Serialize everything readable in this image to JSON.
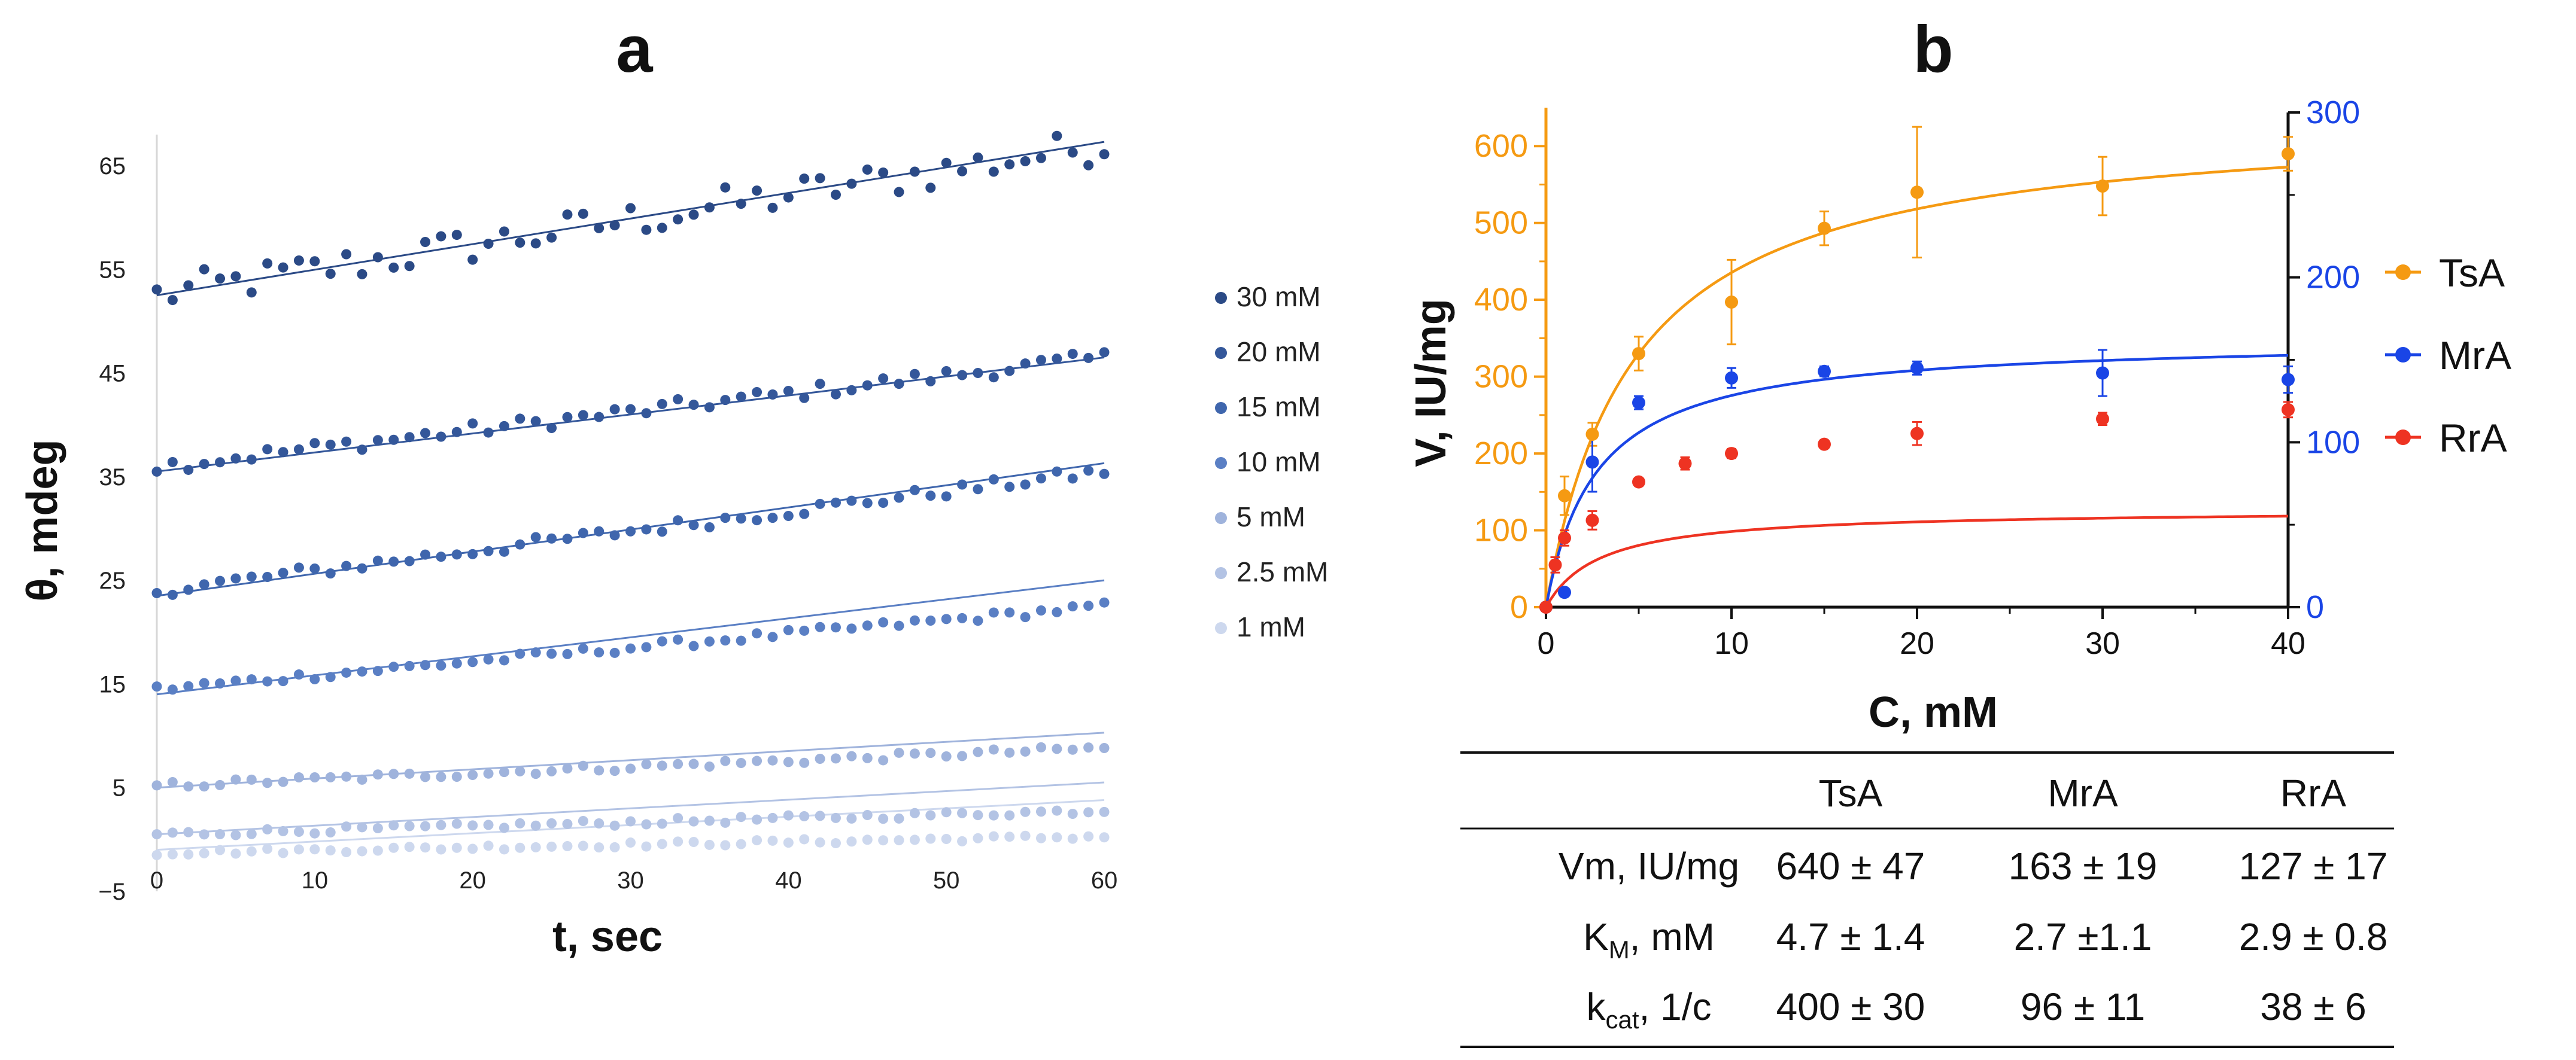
{
  "panels": {
    "a_label": "a",
    "b_label": "b"
  },
  "chart_data": [
    {
      "type": "scatter",
      "panel": "a",
      "xlabel": "t, sec",
      "ylabel": "θ, mdeg",
      "xlim": [
        0,
        60
      ],
      "ylim": [
        -5,
        68
      ],
      "xticks": [
        0,
        10,
        20,
        30,
        40,
        50,
        60
      ],
      "yticks": [
        -5,
        5,
        15,
        25,
        35,
        45,
        55,
        65
      ],
      "ytick_labels": [
        "−5",
        "5",
        "15",
        "25",
        "35",
        "45",
        "55",
        "65"
      ],
      "legend_position": "right",
      "trendline": "linear",
      "series": [
        {
          "name": "30 mM",
          "color": "#2b4a86",
          "start": 52.5,
          "end": 67,
          "fit_start": 52.5,
          "fit_end": 67.3,
          "noise": 1.8
        },
        {
          "name": "20 mM",
          "color": "#34579a",
          "start": 36,
          "end": 46.5,
          "fit_start": 35.5,
          "fit_end": 46.5,
          "noise": 0.7
        },
        {
          "name": "15 mM",
          "color": "#3f66ad",
          "start": 24,
          "end": 35.5,
          "fit_start": 23.5,
          "fit_end": 36.3,
          "noise": 0.6
        },
        {
          "name": "10 mM",
          "color": "#5a7fc4",
          "start": 14.5,
          "end": 22.5,
          "fit_start": 14,
          "fit_end": 25,
          "noise": 0.4
        },
        {
          "name": "5 mM",
          "color": "#9fb3dc",
          "start": 5.2,
          "end": 8.8,
          "fit_start": 5,
          "fit_end": 10.3,
          "noise": 0.35
        },
        {
          "name": "2.5 mM",
          "color": "#b3c3e4",
          "start": 0.5,
          "end": 2.8,
          "fit_start": 0.5,
          "fit_end": 5.5,
          "noise": 0.3
        },
        {
          "name": "1 mM",
          "color": "#cdd8ee",
          "start": -1.3,
          "end": 0.3,
          "fit_start": -1,
          "fit_end": 3.8,
          "noise": 0.25
        }
      ]
    },
    {
      "type": "scatter",
      "panel": "b",
      "xlabel": "C, mM",
      "ylabel": "V, IU/mg",
      "xlim": [
        0,
        40
      ],
      "ylim_left": [
        0,
        650
      ],
      "ylim_right": [
        0,
        300
      ],
      "xticks": [
        0,
        10,
        20,
        30,
        40
      ],
      "yticks_left": [
        0,
        100,
        200,
        300,
        400,
        500,
        600
      ],
      "yticks_right": [
        0,
        100,
        200,
        300
      ],
      "legend_position": "right",
      "fit": "michaelis-menten",
      "series": [
        {
          "name": "TsA",
          "color": "#f59a12",
          "axis": "left",
          "vmax": 640,
          "km": 4.7,
          "x": [
            0,
            1,
            2.5,
            5,
            10,
            15,
            20,
            30,
            40
          ],
          "y": [
            0,
            145,
            225,
            330,
            397,
            493,
            540,
            548,
            590
          ],
          "err": [
            0,
            25,
            15,
            22,
            55,
            22,
            85,
            38,
            22
          ]
        },
        {
          "name": "MrA",
          "color": "#1a45e6",
          "axis": "right",
          "vmax": 163,
          "km": 2.7,
          "x": [
            0,
            1,
            2.5,
            5,
            10,
            15,
            20,
            30,
            40
          ],
          "y": [
            0,
            9,
            88,
            124,
            139,
            143,
            145,
            142,
            138
          ],
          "err": [
            0,
            2,
            18,
            4,
            6,
            3,
            4,
            14,
            8
          ]
        },
        {
          "name": "RrA",
          "color": "#ee3322",
          "axis": "left",
          "vmax": 127,
          "km": 2.9,
          "x": [
            0,
            0.5,
            1,
            2.5,
            5,
            7.5,
            10,
            15,
            20,
            30,
            40
          ],
          "y": [
            0,
            55,
            90,
            113,
            163,
            187,
            200,
            212,
            226,
            245,
            257
          ],
          "err": [
            0,
            10,
            10,
            12,
            5,
            8,
            6,
            5,
            15,
            8,
            10
          ]
        }
      ]
    }
  ],
  "table": {
    "headers": [
      "",
      "TsA",
      "MrA",
      "RrA"
    ],
    "rows": [
      {
        "label": "Vm, IU/mg",
        "label_main": "Vm, IU/mg",
        "label_sub": "",
        "label_rest": "",
        "values": [
          "640 ± 47",
          "163 ± 19",
          "127 ± 17"
        ]
      },
      {
        "label": "KM, mM",
        "label_main": "K",
        "label_sub": "M",
        "label_rest": ", mM",
        "values": [
          "4.7 ± 1.4",
          "2.7 ±1.1",
          "2.9 ± 0.8"
        ]
      },
      {
        "label": "kcat, 1/c",
        "label_main": "k",
        "label_sub": "cat",
        "label_rest": ", 1/c",
        "values": [
          "400 ± 30",
          "96 ± 11",
          "38 ± 6"
        ]
      }
    ]
  }
}
